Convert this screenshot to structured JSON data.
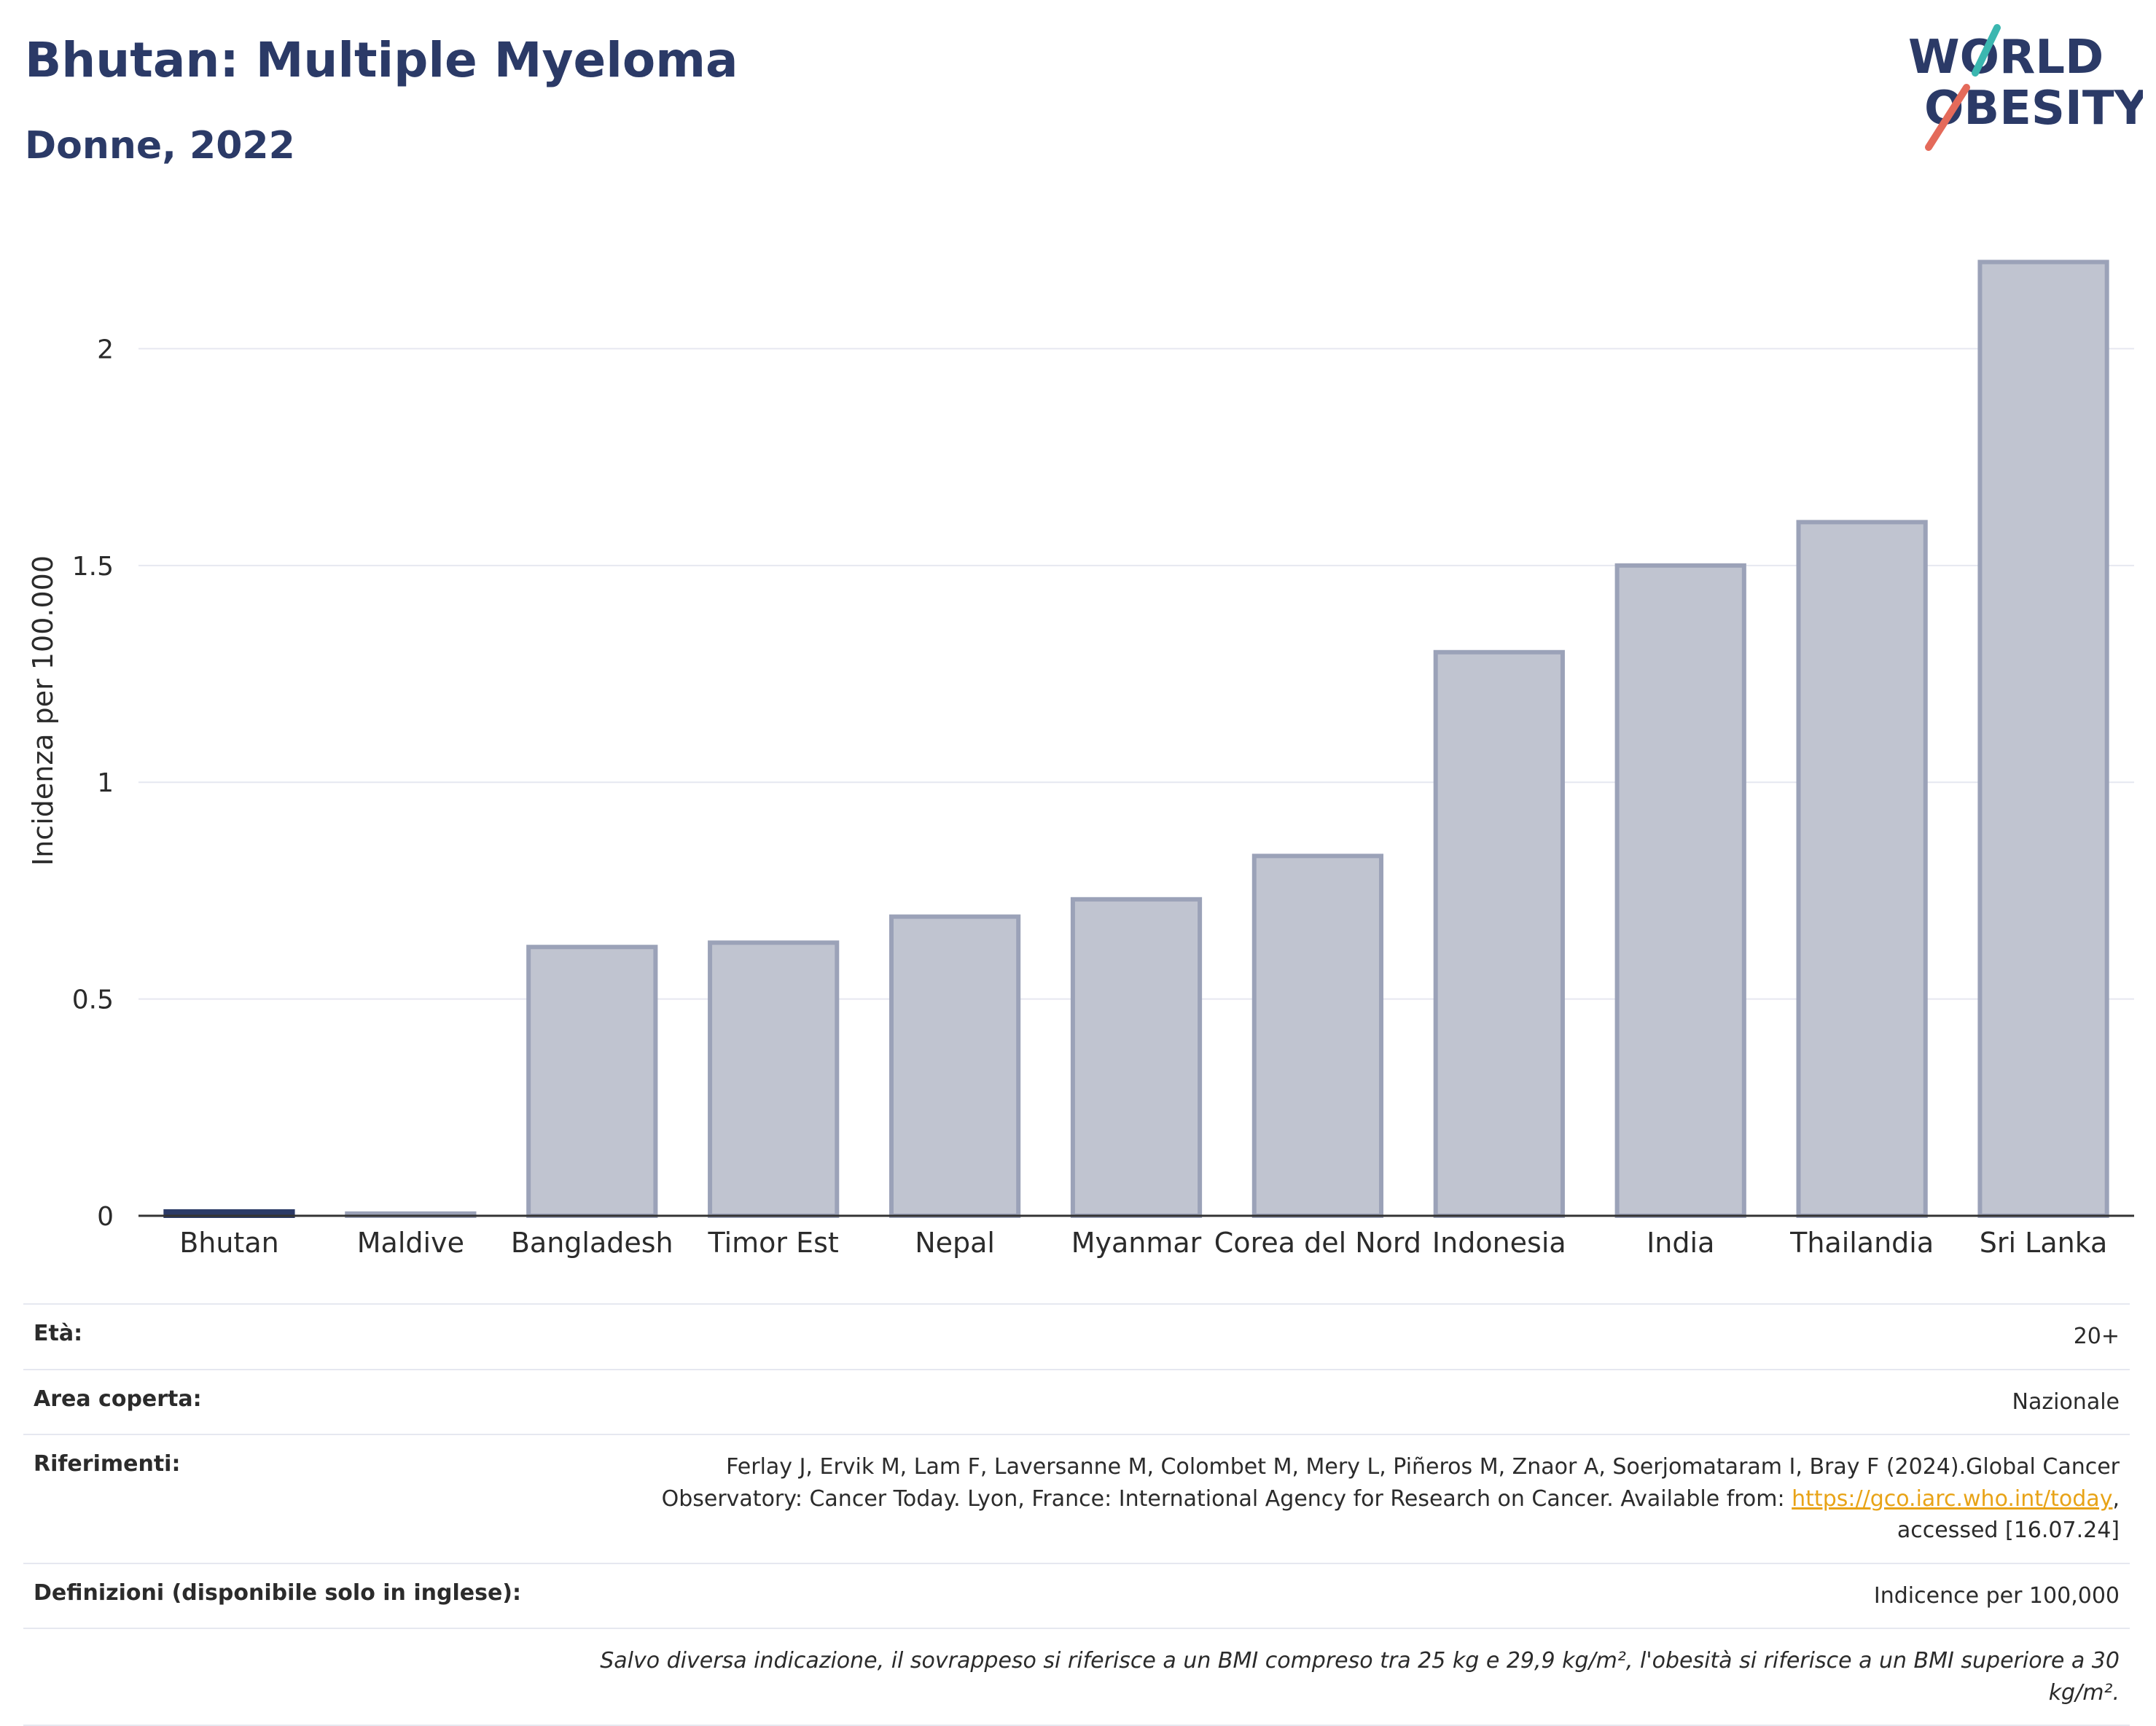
{
  "header": {
    "title": "Bhutan: Multiple Myeloma",
    "subtitle": "Donne, 2022",
    "logo_line1": "WORLD",
    "logo_line2": "OBESITY"
  },
  "colors": {
    "highlight_bar": "#2b3a67",
    "other_bar_fill": "#c0c4d0",
    "other_bar_stroke": "#9ba2b8",
    "text_dark": "#2b3a67",
    "logo_teal": "#3bb7b0",
    "logo_red": "#e46a5a",
    "link": "#e8a317"
  },
  "chart_data": {
    "type": "bar",
    "categories": [
      "Bhutan",
      "Maldive",
      "Bangladesh",
      "Timor Est",
      "Nepal",
      "Myanmar",
      "Corea del Nord",
      "Indonesia",
      "India",
      "Thailandia",
      "Sri Lanka"
    ],
    "values": [
      0.01,
      0.005,
      0.62,
      0.63,
      0.69,
      0.73,
      0.83,
      1.3,
      1.5,
      1.6,
      2.2
    ],
    "highlight": "Bhutan",
    "ylabel": "Incidenza per 100.000",
    "ylim": [
      0,
      2.3
    ],
    "yticks": [
      0,
      0.5,
      1,
      1.5,
      2
    ],
    "ytick_labels": [
      "0",
      "0.5",
      "1",
      "1.5",
      "2"
    ],
    "grid": true
  },
  "info": {
    "age_label": "Età:",
    "age_value": "20+",
    "area_label": "Area coperta:",
    "area_value": "Nazionale",
    "ref_label": "Riferimenti:",
    "ref_text_1": "Ferlay J, Ervik M, Lam F, Laversanne M, Colombet M, Mery L, Piñeros M, Znaor A, Soerjomataram I, Bray F (2024).Global Cancer Observatory: Cancer Today. Lyon, France: International Agency for Research on Cancer. Available from: ",
    "ref_link": "https://gco.iarc.who.int/today",
    "ref_text_2": ", accessed [16.07.24]",
    "def_label": "Definizioni (disponibile solo in inglese):",
    "def_value": "Indicence per 100,000",
    "footnote": "Salvo diversa indicazione, il sovrappeso si riferisce a un BMI compreso tra 25 kg e 29,9 kg/m², l'obesità si riferisce a un BMI superiore a 30 kg/m²."
  }
}
